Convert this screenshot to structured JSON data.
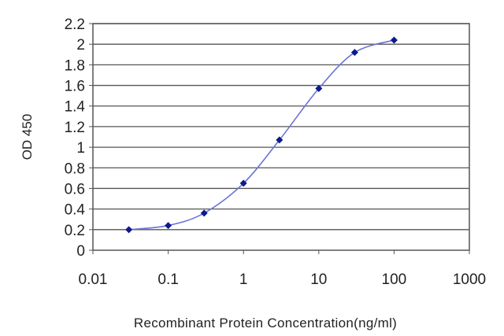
{
  "chart_data": {
    "type": "line",
    "title": "",
    "xlabel": "Recombinant Protein Concentration(ng/ml)",
    "ylabel": "OD 450",
    "x_scale": "log",
    "xlim": [
      0.01,
      1000
    ],
    "ylim": [
      0,
      2.2
    ],
    "x_ticks": [
      "0.01",
      "0.1",
      "1",
      "10",
      "100",
      "1000"
    ],
    "y_ticks": [
      "0",
      "0.2",
      "0.4",
      "0.6",
      "0.8",
      "1",
      "1.2",
      "1.4",
      "1.6",
      "1.8",
      "2",
      "2.2"
    ],
    "grid": "horizontal",
    "series": [
      {
        "x": [
          0.03,
          0.1,
          0.3,
          1,
          3,
          10,
          30,
          100
        ],
        "y": [
          0.2,
          0.24,
          0.36,
          0.65,
          1.07,
          1.57,
          1.92,
          2.04
        ]
      }
    ],
    "colors": {
      "line": "#6b73d8",
      "marker": "#0d1a8c",
      "grid": "#555555",
      "plot_border": "#555555"
    }
  }
}
